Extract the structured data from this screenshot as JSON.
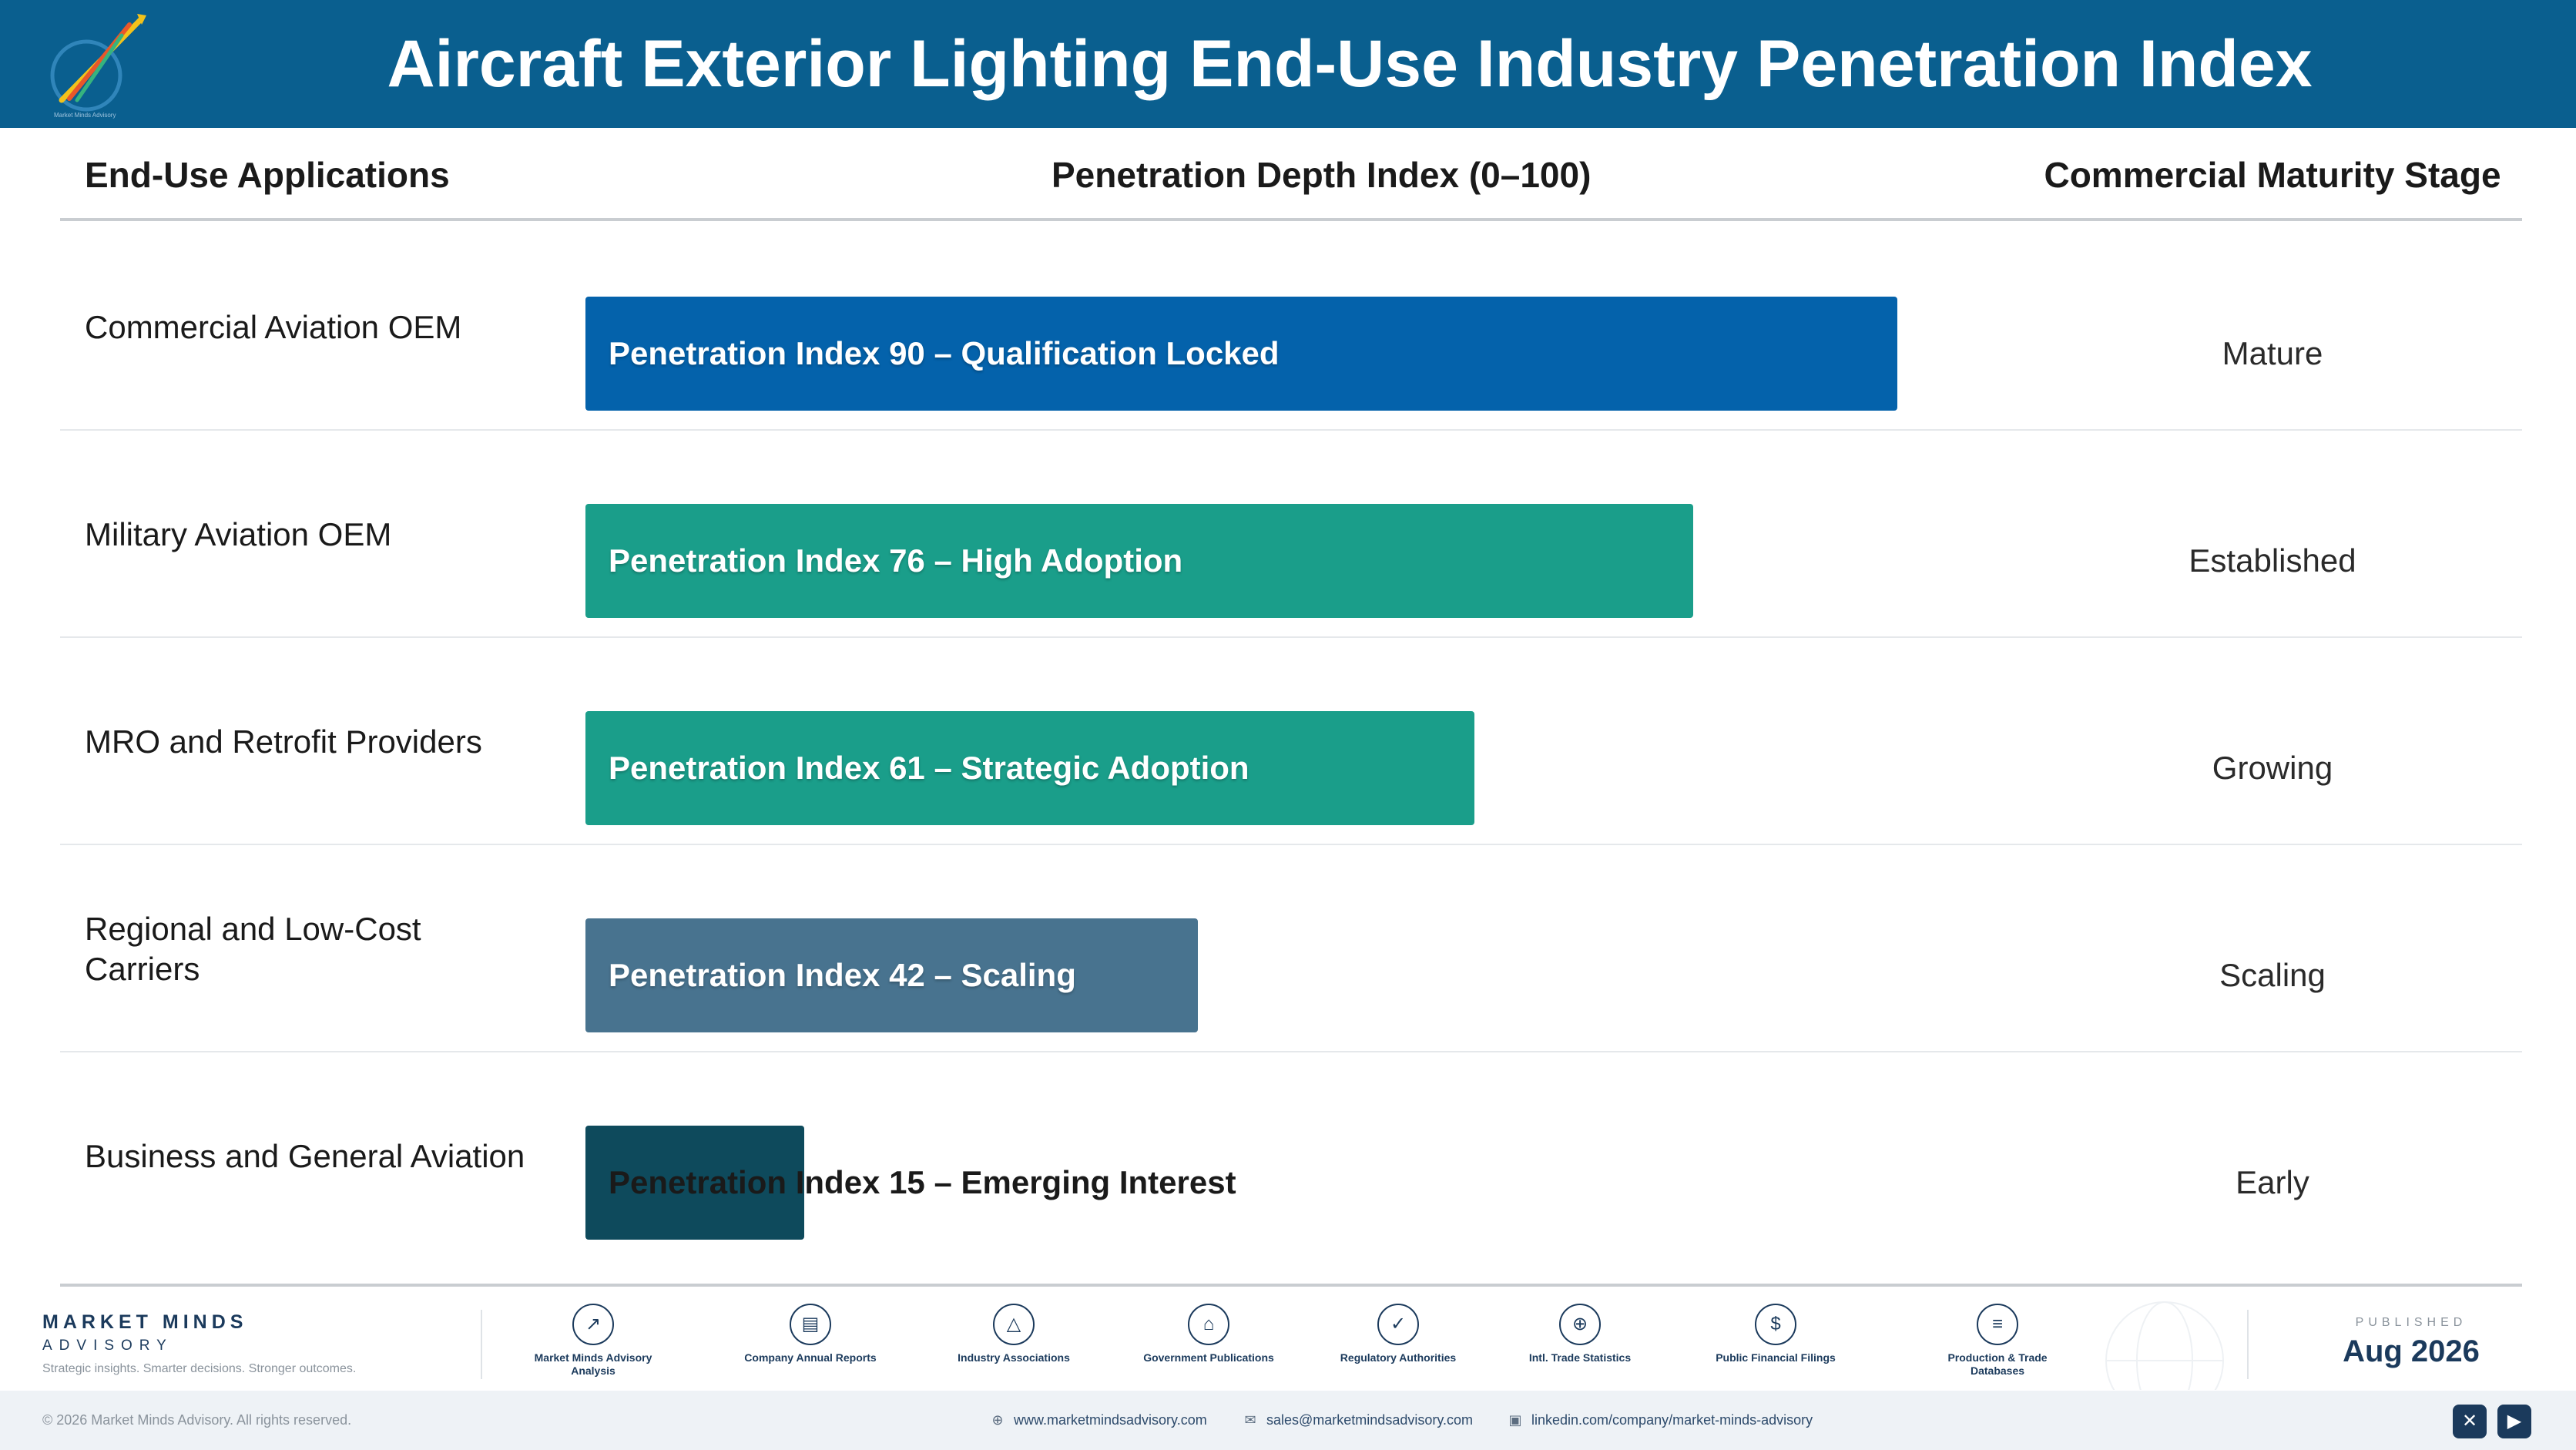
{
  "header": {
    "title": "Aircraft Exterior Lighting End-Use Industry Penetration Index",
    "logo_icon": "market-minds-rocket-logo"
  },
  "columns": {
    "applications": "End-Use Applications",
    "index": "Penetration Depth Index (0–100)",
    "stage": "Commercial Maturity Stage"
  },
  "chart_data": {
    "type": "bar",
    "orientation": "horizontal",
    "title": "Aircraft Exterior Lighting End-Use Industry Penetration Index",
    "xlabel": "Penetration Depth Index (0–100)",
    "xlim": [
      0,
      100
    ],
    "categories": [
      "Commercial Aviation OEM",
      "Military Aviation OEM",
      "MRO and Retrofit Providers",
      "Regional and Low-Cost Carriers",
      "Business and General Aviation"
    ],
    "values": [
      90,
      76,
      61,
      42,
      15
    ],
    "bar_labels": [
      "Penetration Index 90 – Qualification Locked",
      "Penetration Index 76 – High Adoption",
      "Penetration Index 61 – Strategic Adoption",
      "Penetration Index 42 – Scaling",
      "Penetration Index 15 – Emerging Interest"
    ],
    "stages": [
      "Mature",
      "Established",
      "Growing",
      "Scaling",
      "Early"
    ],
    "colors": [
      "#0462ab",
      "#1a9e8a",
      "#1a9e8a",
      "#48738f",
      "#0e4a5c"
    ]
  },
  "footer": {
    "brand_name": "MARKET MINDS",
    "brand_sub": "ADVISORY",
    "tagline": "Strategic insights. Smarter decisions. Stronger outcomes.",
    "sources": [
      {
        "label": "Market Minds Advisory Analysis",
        "icon": "trend-chart-icon"
      },
      {
        "label": "Company Annual Reports",
        "icon": "document-icon"
      },
      {
        "label": "Industry Associations",
        "icon": "network-icon"
      },
      {
        "label": "Government Publications",
        "icon": "government-building-icon"
      },
      {
        "label": "Regulatory Authorities",
        "icon": "shield-check-icon"
      },
      {
        "label": "Intl. Trade Statistics",
        "icon": "globe-icon"
      },
      {
        "label": "Public Financial Filings",
        "icon": "dollar-coin-icon"
      },
      {
        "label": "Production & Trade Databases",
        "icon": "database-icon"
      }
    ],
    "published_label": "PUBLISHED",
    "published_date": "Aug 2026",
    "copyright": "© 2026 Market Minds Advisory. All rights reserved.",
    "website": "www.marketmindsadvisory.com",
    "email": "sales@marketmindsadvisory.com",
    "linkedin": "linkedin.com/company/market-minds-advisory"
  }
}
